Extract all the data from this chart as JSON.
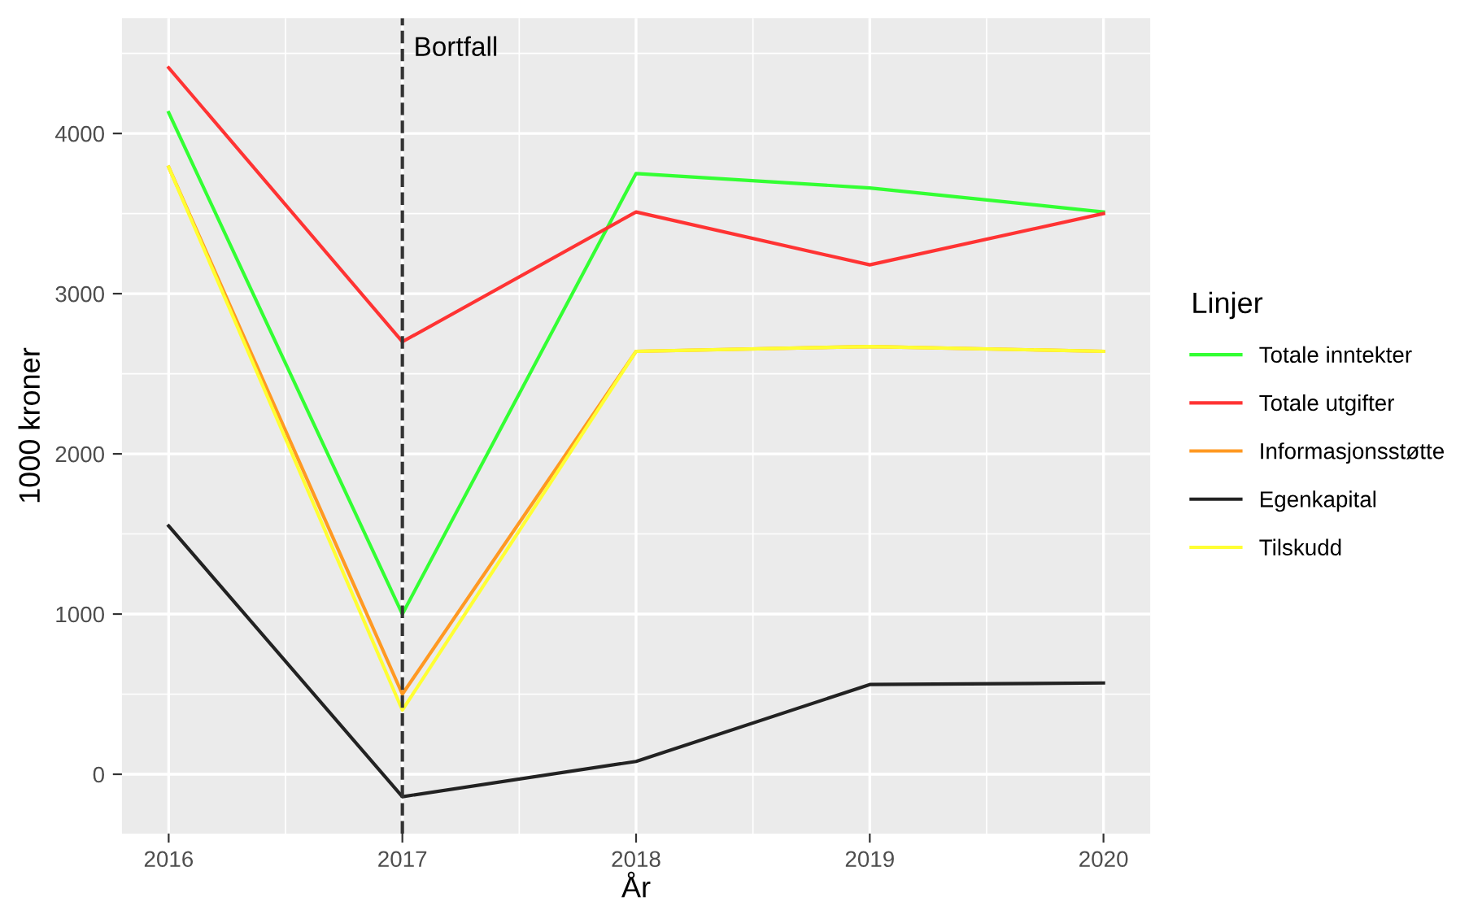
{
  "chart_data": {
    "type": "line",
    "xlabel": "År",
    "ylabel": "1000 kroner",
    "legend_title": "Linjer",
    "x": [
      2016,
      2017,
      2018,
      2019,
      2020
    ],
    "series": [
      {
        "name": "Totale inntekter",
        "color": "#33ff33",
        "values": [
          4130,
          1000,
          3750,
          3660,
          3510
        ]
      },
      {
        "name": "Totale utgifter",
        "color": "#ff3333",
        "values": [
          4410,
          2700,
          3510,
          3180,
          3500
        ]
      },
      {
        "name": "Informasjonsstøtte",
        "color": "#ff9922",
        "values": [
          3790,
          500,
          2640,
          2670,
          2640
        ]
      },
      {
        "name": "Egenkapital",
        "color": "#222222",
        "values": [
          1550,
          -140,
          80,
          560,
          570
        ]
      },
      {
        "name": "Tilskudd",
        "color": "#ffff33",
        "values": [
          3790,
          400,
          2640,
          2670,
          2640
        ]
      }
    ],
    "xlim": [
      2015.8,
      2020.2
    ],
    "ylim": [
      -370,
      4720
    ],
    "xticks": [
      2016,
      2017,
      2018,
      2019,
      2020
    ],
    "yticks": [
      0,
      1000,
      2000,
      3000,
      4000
    ],
    "ref_lines": [
      {
        "axis": "x",
        "value": 2017,
        "label": "Bortfall",
        "color": "#333333",
        "line_style": "dashed"
      }
    ],
    "grid": true,
    "legend": "right",
    "marker": "none",
    "line_style": "solid"
  }
}
